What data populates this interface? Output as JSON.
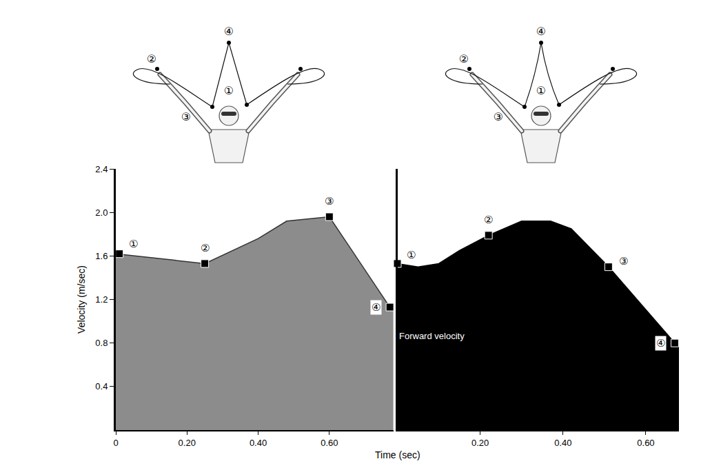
{
  "chart_data": [
    {
      "type": "area",
      "y_label": "Velocity (m/sec)",
      "x_label": "Time (sec)",
      "x": [
        0,
        0.25,
        0.4,
        0.48,
        0.6,
        0.77,
        0.78
      ],
      "values": [
        1.62,
        1.53,
        1.76,
        1.92,
        1.96,
        1.13,
        1.12
      ],
      "color": "#8c8c8c",
      "marker": "square",
      "key_points": {
        "x": [
          0.01,
          0.25,
          0.6,
          0.77
        ],
        "values": [
          1.62,
          1.53,
          1.96,
          1.13
        ],
        "labels": [
          "①",
          "②",
          "③",
          "④"
        ]
      },
      "xlim": [
        0,
        0.78
      ],
      "xticks": [
        0,
        {
          "value": 0.2,
          "label": "0.20"
        },
        {
          "value": 0.4,
          "label": "0.40"
        },
        {
          "value": 0.6,
          "label": "0.60"
        }
      ],
      "ylim": [
        0,
        2.4
      ],
      "yticks": [
        0.4,
        0.8,
        1.2,
        1.6,
        {
          "value": 2,
          "label": "2.0"
        },
        2.4
      ],
      "grid": false,
      "diagram": {
        "labels": [
          "①",
          "②",
          "③",
          "④"
        ]
      }
    },
    {
      "type": "area",
      "annotations": [
        "Forward velocity"
      ],
      "x": [
        0,
        0.05,
        0.1,
        0.15,
        0.22,
        0.3,
        0.37,
        0.42,
        0.51,
        0.67,
        0.68
      ],
      "values": [
        1.53,
        1.5,
        1.53,
        1.65,
        1.79,
        1.92,
        1.92,
        1.85,
        1.5,
        0.8,
        0.8
      ],
      "color": "#000000",
      "marker": "square",
      "key_points": {
        "x": [
          0,
          0.22,
          0.51,
          0.67
        ],
        "values": [
          1.53,
          1.79,
          1.5,
          0.8
        ],
        "labels": [
          "①",
          "②",
          "③",
          "④"
        ]
      },
      "xlim": [
        0,
        0.68
      ],
      "xticks": [
        {
          "value": 0.2,
          "label": "0.20"
        },
        {
          "value": 0.4,
          "label": "0.40"
        },
        {
          "value": 0.6,
          "label": "0.60"
        }
      ],
      "ylim": [
        0,
        2.4
      ],
      "tick_labels": "x",
      "grid": false,
      "diagram": {
        "labels": [
          "①",
          "②",
          "③",
          "④"
        ]
      }
    }
  ]
}
